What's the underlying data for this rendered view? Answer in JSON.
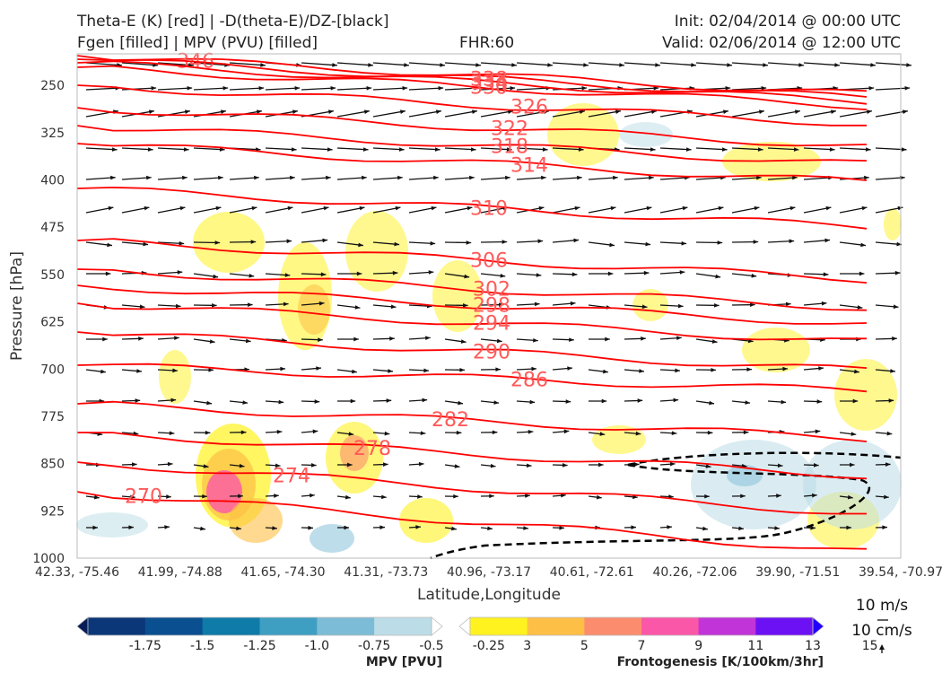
{
  "header": {
    "title_left_1": "Theta-E (K) [red] | -D(theta-E)/DZ-[black]",
    "title_left_2": "Fgen [filled] | MPV (PVU) [filled]",
    "fhr": "FHR:60",
    "init": "Init: 02/04/2014 @ 00:00 UTC",
    "valid": "Valid: 02/06/2014 @ 12:00 UTC"
  },
  "chart_data": {
    "type": "cross-section",
    "xlabel": "Latitude,Longitude",
    "ylabel": "Pressure [hPa]",
    "x_ticks": [
      "42.33, -75.46",
      "41.99, -74.88",
      "41.65, -74.30",
      "41.31, -73.73",
      "40.96, -73.17",
      "40.61, -72.61",
      "40.26, -72.06",
      "39.90, -71.51",
      "39.54, -70.97"
    ],
    "y_ticks": [
      250,
      325,
      400,
      475,
      550,
      625,
      700,
      775,
      850,
      925,
      1000
    ],
    "ylim": [
      1000,
      200
    ],
    "theta_e_contours": [
      346,
      338,
      334,
      330,
      326,
      322,
      318,
      314,
      310,
      306,
      302,
      298,
      294,
      290,
      286,
      282,
      278,
      274,
      270
    ],
    "theta_e_color": "#ff0000",
    "label_color": "#ff5a5a",
    "wind_reference": [
      "10 m/s",
      "10 cm/s"
    ],
    "colorbars": [
      {
        "title": "MPV [PVU]",
        "labels": [
          "-1.75",
          "-1.5",
          "-1.25",
          "-1.0",
          "-0.75",
          "-0.5",
          "-0.25"
        ],
        "colors": [
          "#081d58",
          "#0b3778",
          "#0a4f8f",
          "#0f7ba8",
          "#3e9fc3",
          "#7dbcd6",
          "#bcdde8",
          "#ffffff"
        ]
      },
      {
        "title": "Frontogenesis [K/100km/3hr]",
        "labels": [
          "3",
          "5",
          "7",
          "9",
          "11",
          "13",
          "15"
        ],
        "colors": [
          "#ffffff",
          "#fff21f",
          "#fdbf45",
          "#fb8d6e",
          "#fb57a8",
          "#c034d8",
          "#6c11f4",
          "#2200ff"
        ]
      }
    ]
  }
}
